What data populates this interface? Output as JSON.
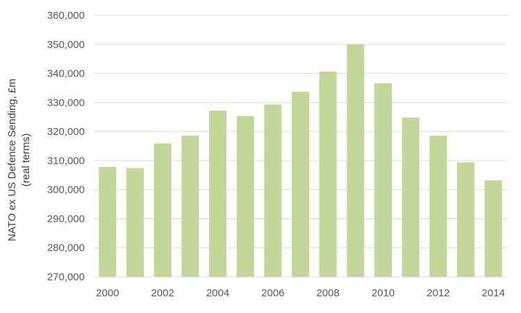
{
  "chart_data": {
    "type": "bar",
    "categories": [
      "2000",
      "2001",
      "2002",
      "2003",
      "2004",
      "2005",
      "2006",
      "2007",
      "2008",
      "2009",
      "2010",
      "2011",
      "2012",
      "2013",
      "2014"
    ],
    "values": [
      307800,
      307400,
      315900,
      318600,
      327200,
      325300,
      329300,
      333700,
      340600,
      350000,
      336600,
      324800,
      318600,
      309400,
      303200
    ],
    "x_tick_labels": [
      "2000",
      "2002",
      "2004",
      "2006",
      "2008",
      "2010",
      "2012",
      "2014"
    ],
    "y_tick_labels": [
      "270,000",
      "280,000",
      "290,000",
      "300,000",
      "310,000",
      "320,000",
      "330,000",
      "340,000",
      "350,000",
      "360,000"
    ],
    "ylabel_line1": "NATO ex US Defence Sending, £m",
    "ylabel_line2": "(real terms)",
    "ylim": [
      270000,
      360000
    ],
    "ystep": 10000,
    "grid": true,
    "legend": "none",
    "bar_color": "#c4d79b"
  }
}
